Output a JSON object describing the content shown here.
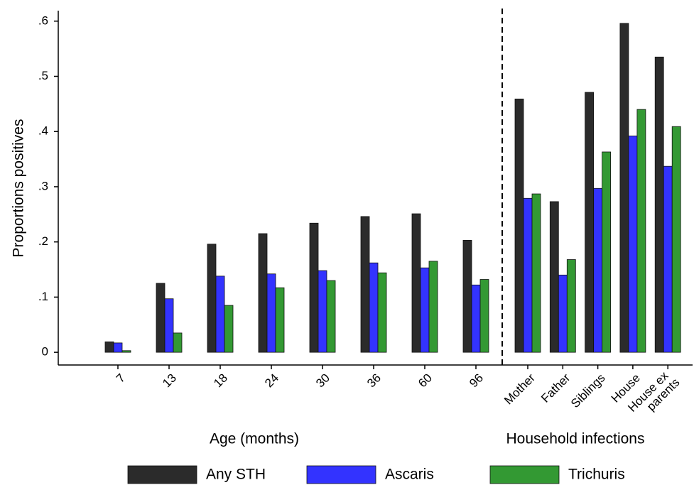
{
  "chart_data": {
    "type": "bar",
    "y_label": "Proportions positives",
    "groups": [
      {
        "name": "Age (months)",
        "categories": [
          "7",
          "13",
          "18",
          "24",
          "30",
          "36",
          "60",
          "96"
        ]
      },
      {
        "name": "Household infections",
        "categories": [
          "Mother",
          "Father",
          "Siblings",
          "House",
          "House ex parents"
        ]
      }
    ],
    "series": [
      {
        "name": "Any STH",
        "color": "#2b2b2b",
        "values": [
          0.019,
          0.125,
          0.196,
          0.215,
          0.234,
          0.246,
          0.251,
          0.203,
          0.459,
          0.273,
          0.471,
          0.596,
          0.535
        ]
      },
      {
        "name": "Ascaris",
        "color": "#3333ff",
        "values": [
          0.017,
          0.097,
          0.138,
          0.142,
          0.148,
          0.162,
          0.153,
          0.122,
          0.279,
          0.14,
          0.297,
          0.392,
          0.337
        ]
      },
      {
        "name": "Trichuris",
        "color": "#339933",
        "values": [
          0.003,
          0.035,
          0.085,
          0.117,
          0.13,
          0.144,
          0.165,
          0.132,
          0.287,
          0.168,
          0.363,
          0.44,
          0.409
        ]
      }
    ],
    "ylim": [
      -0.023,
      0.619
    ],
    "yticks": [
      0,
      {
        "value": 0.1,
        "label": ".1"
      },
      {
        "value": 0.2,
        "label": ".2"
      },
      {
        "value": 0.3,
        "label": ".3"
      },
      {
        "value": 0.4,
        "label": ".4"
      },
      {
        "value": 0.5,
        "label": ".5"
      },
      {
        "value": 0.6,
        "label": ".6"
      }
    ],
    "legend": "bottom"
  }
}
